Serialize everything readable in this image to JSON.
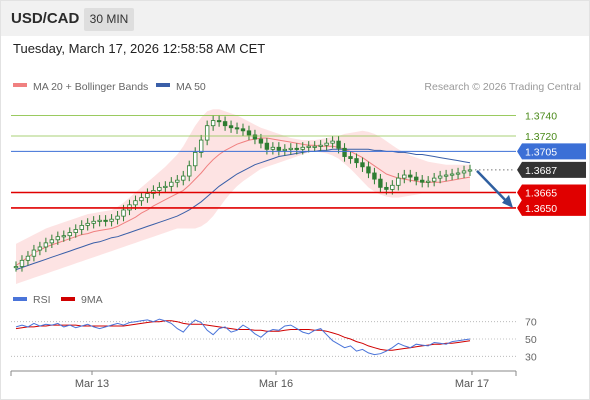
{
  "header": {
    "symbol": "USD/CAD",
    "timeframe": "30 MIN"
  },
  "datetime": "Tuesday, March 17, 2026 12:58:58 AM CET",
  "legend": {
    "ma20_label": "MA 20 + Bollinger Bands",
    "ma50_label": "MA 50",
    "credit": "Research © 2026 Trading Central",
    "rsi_label": "RSI",
    "rsi_ma_label": "9MA"
  },
  "colors": {
    "ma20": "#f08080",
    "ma50": "#3a5fa8",
    "bollinger_fill": "#fde0e0",
    "candle": "#2e7d32",
    "resistance": "#8bc34a",
    "pivot": "#3b6fd6",
    "support": "#e00000",
    "last": "#333333",
    "arrow": "#2f5fa0",
    "rsi": "#4a74d9",
    "rsi_ma": "#d00000"
  },
  "x_axis_labels": [
    "Mar 13",
    "Mar 16",
    "Mar 17"
  ],
  "chart_data": [
    {
      "type": "candlestick",
      "title": "USD/CAD",
      "ylim": [
        1.3575,
        1.3755
      ],
      "levels": [
        {
          "value": 1.374,
          "label": "1.3740",
          "kind": "resistance"
        },
        {
          "value": 1.372,
          "label": "1.3720",
          "kind": "resistance"
        },
        {
          "value": 1.3705,
          "label": "1.3705",
          "kind": "pivot"
        },
        {
          "value": 1.3687,
          "label": "1.3687",
          "kind": "last"
        },
        {
          "value": 1.3665,
          "label": "1.3665",
          "kind": "support"
        },
        {
          "value": 1.365,
          "label": "1.3650",
          "kind": "support"
        }
      ],
      "close": [
        1.3593,
        1.3599,
        1.3603,
        1.3609,
        1.3612,
        1.3616,
        1.3619,
        1.3622,
        1.3623,
        1.3626,
        1.3629,
        1.3633,
        1.3635,
        1.3637,
        1.3638,
        1.3637,
        1.3639,
        1.3642,
        1.3648,
        1.3653,
        1.3657,
        1.366,
        1.3664,
        1.3667,
        1.367,
        1.3671,
        1.3675,
        1.3677,
        1.3681,
        1.3691,
        1.3704,
        1.3716,
        1.373,
        1.3735,
        1.3734,
        1.373,
        1.3728,
        1.3727,
        1.3725,
        1.3721,
        1.3717,
        1.3713,
        1.3707,
        1.3709,
        1.3706,
        1.3707,
        1.3708,
        1.3707,
        1.3709,
        1.371,
        1.371,
        1.3711,
        1.3713,
        1.3715,
        1.3708,
        1.37,
        1.3698,
        1.3694,
        1.369,
        1.3684,
        1.3678,
        1.367,
        1.3668,
        1.3672,
        1.3679,
        1.3682,
        1.368,
        1.3677,
        1.3675,
        1.3676,
        1.3679,
        1.3681,
        1.3682,
        1.3683,
        1.3684,
        1.3686,
        1.3687
      ],
      "ma20": [
        1.3594,
        1.3598,
        1.3602,
        1.3606,
        1.3609,
        1.3612,
        1.3614,
        1.3616,
        1.3618,
        1.362,
        1.3622,
        1.3624,
        1.3625,
        1.3627,
        1.3628,
        1.3629,
        1.363,
        1.3632,
        1.3635,
        1.3638,
        1.3641,
        1.3645,
        1.3648,
        1.3652,
        1.3655,
        1.3658,
        1.3661,
        1.3664,
        1.3667,
        1.3672,
        1.3678,
        1.3684,
        1.3691,
        1.3697,
        1.3702,
        1.3706,
        1.3709,
        1.3712,
        1.3714,
        1.3716,
        1.3717,
        1.3718,
        1.3718,
        1.3717,
        1.3716,
        1.3715,
        1.3714,
        1.3713,
        1.3712,
        1.3711,
        1.3711,
        1.371,
        1.371,
        1.371,
        1.3709,
        1.3707,
        1.3705,
        1.3702,
        1.3699,
        1.3695,
        1.3691,
        1.3687,
        1.3683,
        1.3681,
        1.3679,
        1.3678,
        1.3677,
        1.3676,
        1.3675,
        1.3675,
        1.3675,
        1.3675,
        1.3676,
        1.3677,
        1.3678,
        1.3679,
        1.368
      ],
      "ma50": [
        1.359,
        1.3592,
        1.3594,
        1.3596,
        1.3598,
        1.36,
        1.3602,
        1.3604,
        1.3606,
        1.3608,
        1.361,
        1.3612,
        1.3614,
        1.3616,
        1.3617,
        1.3619,
        1.3621,
        1.3622,
        1.3624,
        1.3626,
        1.3628,
        1.363,
        1.3632,
        1.3634,
        1.3636,
        1.3638,
        1.364,
        1.3642,
        1.3645,
        1.3648,
        1.3652,
        1.3656,
        1.3661,
        1.3666,
        1.3671,
        1.3675,
        1.3679,
        1.3683,
        1.3686,
        1.3689,
        1.3692,
        1.3694,
        1.3696,
        1.3698,
        1.37,
        1.3701,
        1.3702,
        1.3703,
        1.3704,
        1.3705,
        1.3705,
        1.3706,
        1.3706,
        1.3707,
        1.3707,
        1.3707,
        1.3707,
        1.3707,
        1.3707,
        1.3707,
        1.3706,
        1.3706,
        1.3705,
        1.3705,
        1.3704,
        1.3704,
        1.3703,
        1.3702,
        1.3702,
        1.3701,
        1.37,
        1.3699,
        1.3698,
        1.3697,
        1.3696,
        1.3695,
        1.3694
      ],
      "bb_upper": [
        1.3615,
        1.3618,
        1.3621,
        1.3624,
        1.3627,
        1.363,
        1.3632,
        1.3634,
        1.3636,
        1.3638,
        1.364,
        1.3642,
        1.3644,
        1.3645,
        1.3646,
        1.3647,
        1.3648,
        1.3651,
        1.3655,
        1.366,
        1.3665,
        1.367,
        1.3675,
        1.368,
        1.3685,
        1.369,
        1.3696,
        1.3702,
        1.371,
        1.372,
        1.373,
        1.3738,
        1.3744,
        1.3746,
        1.3746,
        1.3744,
        1.3742,
        1.374,
        1.3737,
        1.3734,
        1.3731,
        1.3728,
        1.3726,
        1.3724,
        1.3722,
        1.372,
        1.3718,
        1.3717,
        1.3716,
        1.3716,
        1.3716,
        1.3717,
        1.3718,
        1.3719,
        1.372,
        1.3722,
        1.3723,
        1.3724,
        1.3725,
        1.3724,
        1.3722,
        1.3719,
        1.3715,
        1.3711,
        1.3707,
        1.3704,
        1.3701,
        1.3699,
        1.3697,
        1.3695,
        1.3694,
        1.3693,
        1.3692,
        1.3692,
        1.3692,
        1.3692,
        1.3692
      ],
      "bb_lower": [
        1.3576,
        1.3578,
        1.358,
        1.3582,
        1.3584,
        1.3586,
        1.3588,
        1.359,
        1.3592,
        1.3594,
        1.3596,
        1.3598,
        1.36,
        1.3602,
        1.3604,
        1.3606,
        1.3608,
        1.361,
        1.3612,
        1.3614,
        1.3616,
        1.3618,
        1.362,
        1.3622,
        1.3624,
        1.3626,
        1.3628,
        1.363,
        1.363,
        1.363,
        1.363,
        1.3632,
        1.3636,
        1.3642,
        1.365,
        1.3658,
        1.3665,
        1.3671,
        1.3676,
        1.368,
        1.3684,
        1.3688,
        1.369,
        1.3692,
        1.3694,
        1.3696,
        1.3698,
        1.37,
        1.3702,
        1.3704,
        1.3705,
        1.3704,
        1.3703,
        1.3701,
        1.3698,
        1.3693,
        1.3688,
        1.3682,
        1.3676,
        1.367,
        1.3666,
        1.3663,
        1.3661,
        1.366,
        1.366,
        1.3661,
        1.3662,
        1.3663,
        1.3664,
        1.3664,
        1.3664,
        1.3664,
        1.3664,
        1.3664,
        1.3664,
        1.3664,
        1.3664
      ]
    },
    {
      "type": "line",
      "title": "RSI",
      "ylim": [
        20,
        80
      ],
      "y_ticks": [
        70,
        50,
        30
      ],
      "series": [
        {
          "name": "RSI",
          "values": [
            64,
            66,
            64,
            68,
            65,
            67,
            66,
            68,
            64,
            66,
            63,
            65,
            67,
            64,
            62,
            64,
            66,
            68,
            66,
            69,
            70,
            71,
            72,
            70,
            73,
            71,
            68,
            62,
            58,
            66,
            72,
            69,
            60,
            55,
            62,
            64,
            58,
            60,
            66,
            62,
            56,
            52,
            58,
            61,
            60,
            65,
            66,
            62,
            58,
            56,
            60,
            62,
            55,
            48,
            44,
            40,
            42,
            36,
            38,
            34,
            32,
            33,
            36,
            40,
            45,
            42,
            40,
            44,
            43,
            42,
            46,
            45,
            44,
            47,
            48,
            49,
            50
          ]
        },
        {
          "name": "9MA",
          "values": [
            62,
            63,
            64,
            64,
            65,
            65,
            66,
            66,
            66,
            66,
            66,
            65,
            65,
            65,
            65,
            65,
            65,
            65,
            65,
            66,
            67,
            68,
            69,
            70,
            70,
            71,
            71,
            70,
            68,
            67,
            67,
            67,
            66,
            65,
            64,
            63,
            62,
            61,
            61,
            61,
            60,
            60,
            59,
            59,
            59,
            60,
            61,
            61,
            61,
            61,
            60,
            60,
            59,
            57,
            55,
            52,
            50,
            47,
            45,
            42,
            40,
            38,
            37,
            37,
            38,
            39,
            40,
            41,
            42,
            43,
            44,
            44,
            45,
            45,
            46,
            47,
            48
          ]
        }
      ]
    }
  ]
}
